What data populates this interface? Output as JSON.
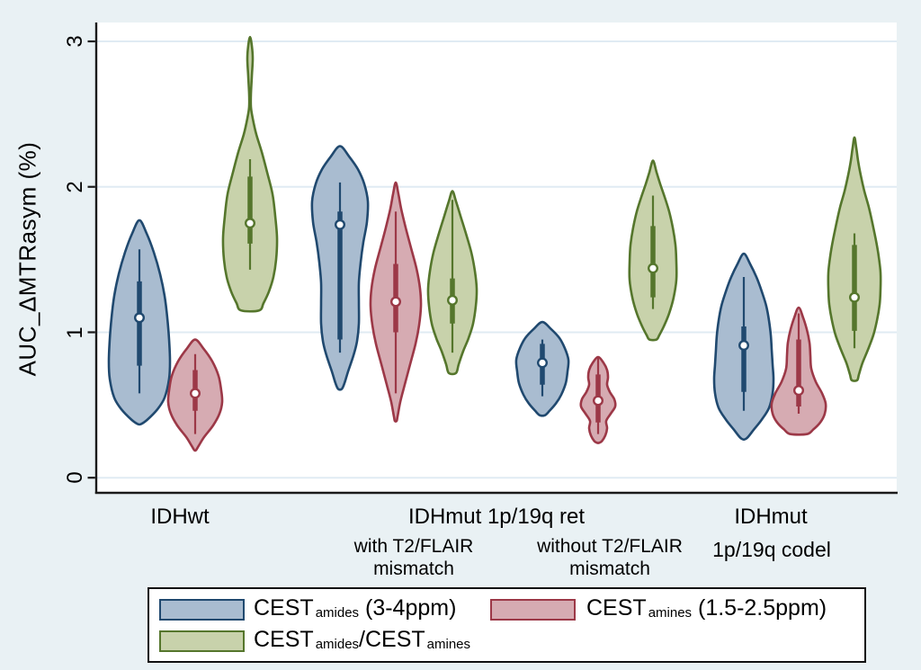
{
  "figure": {
    "background": "#e9f1f4",
    "plot_background": "#ffffff",
    "grid_color": "#e0ebf3",
    "axis_color": "#1a1a1a"
  },
  "y_axis": {
    "title": "AUC_ΔMTRasym (%)",
    "ticks": [
      "0",
      "1",
      "2",
      "3"
    ]
  },
  "x_axis": {
    "group1": "IDHwt",
    "group23": "IDHmut 1p/19q ret",
    "group4_line1": "IDHmut",
    "group4_line2": "1p/19q codel",
    "sub_with": {
      "line1": "with T2/FLAIR",
      "line2": "mismatch"
    },
    "sub_without": {
      "line1": "without T2/FLAIR",
      "line2": "mismatch"
    }
  },
  "legend": {
    "items": [
      {
        "t1": "CEST",
        "s1": "amides",
        "t2": " (3-4ppm)",
        "s2": "",
        "fill": "#a9bcd0",
        "stroke": "#20496f"
      },
      {
        "t1": "CEST",
        "s1": "amines",
        "t2": " (1.5-2.5ppm)",
        "s2": "",
        "fill": "#d6abb2",
        "stroke": "#9c3847"
      },
      {
        "t1": "CEST",
        "s1": "amides",
        "t2": "/CEST",
        "s2": "amines",
        "fill": "#c8d2ab",
        "stroke": "#55762c"
      }
    ]
  },
  "chart_data": {
    "type": "violin",
    "ylabel": "AUC_ΔMTRasym (%)",
    "ylim": [
      0,
      3.2
    ],
    "yticks": [
      0,
      1,
      2,
      3
    ],
    "grid": true,
    "legend_position": "bottom",
    "series": [
      {
        "name": "CEST amides (3-4ppm)",
        "fill": "#a9bcd0",
        "stroke": "#20496f"
      },
      {
        "name": "CEST amines (1.5-2.5ppm)",
        "fill": "#d6abb2",
        "stroke": "#9c3847"
      },
      {
        "name": "CEST amides/CEST amines",
        "fill": "#c8d2ab",
        "stroke": "#55762c"
      }
    ],
    "groups": [
      "IDHwt",
      "IDHmut 1p/19q ret - with T2/FLAIR mismatch",
      "IDHmut 1p/19q ret - without T2/FLAIR mismatch",
      "IDHmut 1p/19q codel"
    ],
    "violins": [
      {
        "group": 0,
        "series": 0,
        "cx": 155,
        "min": 0.37,
        "max": 1.77,
        "whisker_low": 0.58,
        "whisker_high": 1.57,
        "q1": 0.77,
        "q3": 1.35,
        "median": 1.1,
        "profile": [
          [
            1.77,
            0
          ],
          [
            1.68,
            8
          ],
          [
            1.55,
            16
          ],
          [
            1.4,
            23
          ],
          [
            1.25,
            28
          ],
          [
            1.1,
            31
          ],
          [
            0.95,
            33
          ],
          [
            0.8,
            34
          ],
          [
            0.68,
            33
          ],
          [
            0.55,
            28
          ],
          [
            0.47,
            20
          ],
          [
            0.4,
            9
          ],
          [
            0.37,
            2
          ]
        ]
      },
      {
        "group": 0,
        "series": 1,
        "cx": 217,
        "min": 0.19,
        "max": 0.95,
        "whisker_low": 0.3,
        "whisker_high": 0.85,
        "q1": 0.46,
        "q3": 0.74,
        "median": 0.58,
        "profile": [
          [
            0.95,
            0
          ],
          [
            0.89,
            9
          ],
          [
            0.8,
            19
          ],
          [
            0.7,
            26
          ],
          [
            0.6,
            29
          ],
          [
            0.52,
            30
          ],
          [
            0.44,
            27
          ],
          [
            0.36,
            20
          ],
          [
            0.28,
            10
          ],
          [
            0.22,
            4
          ],
          [
            0.19,
            1
          ]
        ]
      },
      {
        "group": 0,
        "series": 2,
        "cx": 278,
        "min": 1.15,
        "max": 3.03,
        "whisker_low": 1.43,
        "whisker_high": 2.19,
        "q1": 1.61,
        "q3": 2.07,
        "median": 1.75,
        "profile": [
          [
            3.03,
            0
          ],
          [
            2.97,
            2
          ],
          [
            2.88,
            3
          ],
          [
            2.76,
            2
          ],
          [
            2.64,
            1
          ],
          [
            2.55,
            1
          ],
          [
            2.47,
            3
          ],
          [
            2.36,
            7
          ],
          [
            2.24,
            13
          ],
          [
            2.1,
            19
          ],
          [
            1.95,
            25
          ],
          [
            1.8,
            28
          ],
          [
            1.65,
            30
          ],
          [
            1.5,
            29
          ],
          [
            1.38,
            26
          ],
          [
            1.28,
            21
          ],
          [
            1.2,
            15
          ],
          [
            1.15,
            10
          ]
        ]
      },
      {
        "group": 1,
        "series": 0,
        "cx": 378,
        "min": 0.61,
        "max": 2.28,
        "whisker_low": 0.86,
        "whisker_high": 2.03,
        "q1": 0.95,
        "q3": 1.83,
        "median": 1.74,
        "profile": [
          [
            2.28,
            0
          ],
          [
            2.21,
            10
          ],
          [
            2.12,
            20
          ],
          [
            2.02,
            27
          ],
          [
            1.9,
            31
          ],
          [
            1.76,
            30
          ],
          [
            1.62,
            26
          ],
          [
            1.48,
            23
          ],
          [
            1.34,
            21
          ],
          [
            1.2,
            21
          ],
          [
            1.06,
            21
          ],
          [
            0.94,
            19
          ],
          [
            0.84,
            15
          ],
          [
            0.73,
            9
          ],
          [
            0.65,
            5
          ],
          [
            0.61,
            2
          ]
        ]
      },
      {
        "group": 1,
        "series": 1,
        "cx": 440,
        "min": 0.39,
        "max": 2.03,
        "whisker_low": 0.58,
        "whisker_high": 1.83,
        "q1": 1.0,
        "q3": 1.47,
        "median": 1.21,
        "profile": [
          [
            2.03,
            0
          ],
          [
            1.95,
            3
          ],
          [
            1.85,
            6
          ],
          [
            1.72,
            11
          ],
          [
            1.58,
            17
          ],
          [
            1.44,
            23
          ],
          [
            1.3,
            27
          ],
          [
            1.18,
            28
          ],
          [
            1.05,
            26
          ],
          [
            0.92,
            22
          ],
          [
            0.78,
            16
          ],
          [
            0.64,
            10
          ],
          [
            0.52,
            5
          ],
          [
            0.42,
            2
          ],
          [
            0.39,
            1
          ]
        ]
      },
      {
        "group": 1,
        "series": 2,
        "cx": 503,
        "min": 0.72,
        "max": 1.97,
        "whisker_low": 0.86,
        "whisker_high": 1.91,
        "q1": 1.06,
        "q3": 1.37,
        "median": 1.22,
        "profile": [
          [
            1.97,
            0
          ],
          [
            1.9,
            4
          ],
          [
            1.8,
            9
          ],
          [
            1.68,
            15
          ],
          [
            1.55,
            21
          ],
          [
            1.42,
            25
          ],
          [
            1.3,
            27
          ],
          [
            1.18,
            26
          ],
          [
            1.06,
            23
          ],
          [
            0.96,
            18
          ],
          [
            0.87,
            12
          ],
          [
            0.78,
            7
          ],
          [
            0.72,
            4
          ]
        ]
      },
      {
        "group": 2,
        "series": 0,
        "cx": 603,
        "min": 0.43,
        "max": 1.07,
        "whisker_low": 0.56,
        "whisker_high": 0.95,
        "q1": 0.64,
        "q3": 0.92,
        "median": 0.79,
        "profile": [
          [
            1.07,
            0
          ],
          [
            1.02,
            10
          ],
          [
            0.96,
            19
          ],
          [
            0.89,
            25
          ],
          [
            0.81,
            29
          ],
          [
            0.73,
            28
          ],
          [
            0.65,
            26
          ],
          [
            0.57,
            21
          ],
          [
            0.51,
            15
          ],
          [
            0.46,
            8
          ],
          [
            0.43,
            3
          ]
        ]
      },
      {
        "group": 2,
        "series": 1,
        "cx": 665,
        "min": 0.24,
        "max": 0.83,
        "whisker_low": 0.3,
        "whisker_high": 0.83,
        "q1": 0.38,
        "q3": 0.71,
        "median": 0.53,
        "profile": [
          [
            0.83,
            0
          ],
          [
            0.79,
            6
          ],
          [
            0.74,
            10
          ],
          [
            0.69,
            11
          ],
          [
            0.64,
            10
          ],
          [
            0.59,
            13
          ],
          [
            0.54,
            18
          ],
          [
            0.49,
            19
          ],
          [
            0.44,
            14
          ],
          [
            0.39,
            9
          ],
          [
            0.34,
            10
          ],
          [
            0.29,
            8
          ],
          [
            0.25,
            4
          ],
          [
            0.24,
            1
          ]
        ]
      },
      {
        "group": 2,
        "series": 2,
        "cx": 726,
        "min": 0.95,
        "max": 2.18,
        "whisker_low": 1.16,
        "whisker_high": 1.94,
        "q1": 1.24,
        "q3": 1.73,
        "median": 1.44,
        "profile": [
          [
            2.18,
            0
          ],
          [
            2.1,
            4
          ],
          [
            2.02,
            8
          ],
          [
            1.93,
            13
          ],
          [
            1.83,
            18
          ],
          [
            1.72,
            22
          ],
          [
            1.6,
            25
          ],
          [
            1.48,
            26
          ],
          [
            1.36,
            26
          ],
          [
            1.24,
            23
          ],
          [
            1.13,
            18
          ],
          [
            1.04,
            12
          ],
          [
            0.98,
            7
          ],
          [
            0.95,
            4
          ]
        ]
      },
      {
        "group": 3,
        "series": 0,
        "cx": 827,
        "min": 0.27,
        "max": 1.54,
        "whisker_low": 0.46,
        "whisker_high": 1.38,
        "q1": 0.59,
        "q3": 1.04,
        "median": 0.91,
        "profile": [
          [
            1.54,
            0
          ],
          [
            1.47,
            7
          ],
          [
            1.38,
            14
          ],
          [
            1.28,
            20
          ],
          [
            1.18,
            25
          ],
          [
            1.08,
            28
          ],
          [
            0.98,
            30
          ],
          [
            0.88,
            31
          ],
          [
            0.78,
            32
          ],
          [
            0.68,
            33
          ],
          [
            0.58,
            32
          ],
          [
            0.48,
            28
          ],
          [
            0.4,
            20
          ],
          [
            0.33,
            11
          ],
          [
            0.27,
            3
          ]
        ]
      },
      {
        "group": 3,
        "series": 1,
        "cx": 888,
        "min": 0.3,
        "max": 1.17,
        "whisker_low": 0.44,
        "whisker_high": 1.13,
        "q1": 0.49,
        "q3": 0.95,
        "median": 0.6,
        "profile": [
          [
            1.17,
            0
          ],
          [
            1.1,
            5
          ],
          [
            1.02,
            9
          ],
          [
            0.93,
            12
          ],
          [
            0.84,
            13
          ],
          [
            0.75,
            14
          ],
          [
            0.66,
            19
          ],
          [
            0.58,
            26
          ],
          [
            0.51,
            30
          ],
          [
            0.44,
            29
          ],
          [
            0.38,
            24
          ],
          [
            0.33,
            16
          ],
          [
            0.3,
            9
          ]
        ]
      },
      {
        "group": 3,
        "series": 2,
        "cx": 950,
        "min": 0.67,
        "max": 2.34,
        "whisker_low": 0.89,
        "whisker_high": 1.68,
        "q1": 1.01,
        "q3": 1.6,
        "median": 1.24,
        "profile": [
          [
            2.34,
            0
          ],
          [
            2.27,
            2
          ],
          [
            2.18,
            4
          ],
          [
            2.08,
            7
          ],
          [
            1.97,
            11
          ],
          [
            1.86,
            16
          ],
          [
            1.75,
            20
          ],
          [
            1.63,
            24
          ],
          [
            1.52,
            27
          ],
          [
            1.41,
            29
          ],
          [
            1.3,
            29
          ],
          [
            1.19,
            28
          ],
          [
            1.08,
            25
          ],
          [
            0.98,
            21
          ],
          [
            0.88,
            15
          ],
          [
            0.79,
            9
          ],
          [
            0.71,
            5
          ],
          [
            0.67,
            3
          ]
        ]
      }
    ]
  }
}
